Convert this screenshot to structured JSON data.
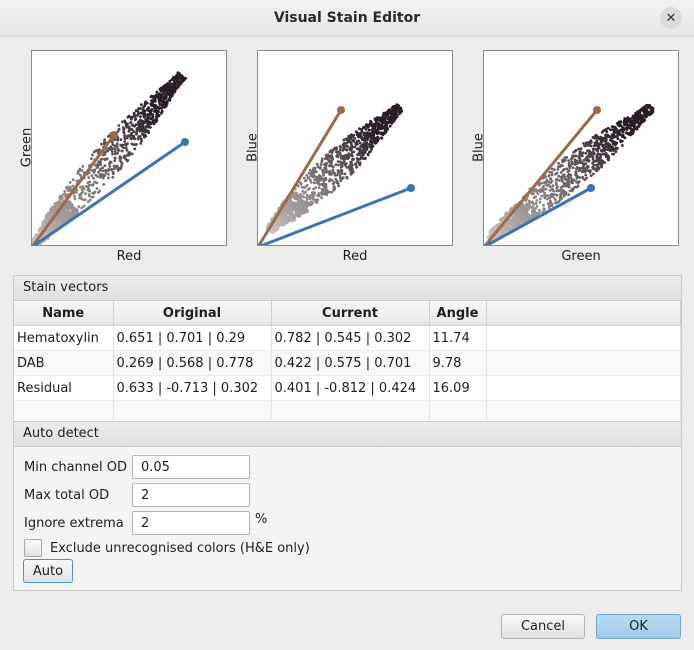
{
  "window": {
    "title": "Visual Stain Editor"
  },
  "plots": [
    {
      "xlabel": "Red",
      "ylabel": "Green"
    },
    {
      "xlabel": "Red",
      "ylabel": "Blue"
    },
    {
      "xlabel": "Green",
      "ylabel": "Blue"
    }
  ],
  "colors": {
    "stain1_line": "#9b6a4a",
    "stain2_line": "#3a74b4",
    "points_dark": "#2a1e28",
    "points_light": "#c9c3c0",
    "ok_button": "#a9d2ee"
  },
  "stain_vectors": {
    "header": "Stain vectors",
    "columns": [
      "Name",
      "Original",
      "Current",
      "Angle"
    ],
    "rows": [
      {
        "name": "Hematoxylin",
        "original": "0.651 | 0.701 | 0.29",
        "current": "0.782 | 0.545 | 0.302",
        "angle": "11.74"
      },
      {
        "name": "DAB",
        "original": "0.269 | 0.568 | 0.778",
        "current": "0.422 | 0.575 | 0.701",
        "angle": "9.78"
      },
      {
        "name": "Residual",
        "original": "0.633 | -0.713 | 0.302",
        "current": "0.401 | -0.812 | 0.424",
        "angle": "16.09"
      }
    ]
  },
  "auto_detect": {
    "header": "Auto detect",
    "min_channel_od_label": "Min channel OD",
    "min_channel_od_value": "0.05",
    "max_total_od_label": "Max total OD",
    "max_total_od_value": "2",
    "ignore_extrema_label": "Ignore extrema",
    "ignore_extrema_value": "2",
    "ignore_extrema_unit": "%",
    "exclude_label": "Exclude unrecognised colors (H&E only)",
    "exclude_checked": false,
    "auto_button": "Auto"
  },
  "footer": {
    "cancel_label": "Cancel",
    "ok_label": "OK"
  },
  "icons": {
    "close": "close-icon"
  }
}
